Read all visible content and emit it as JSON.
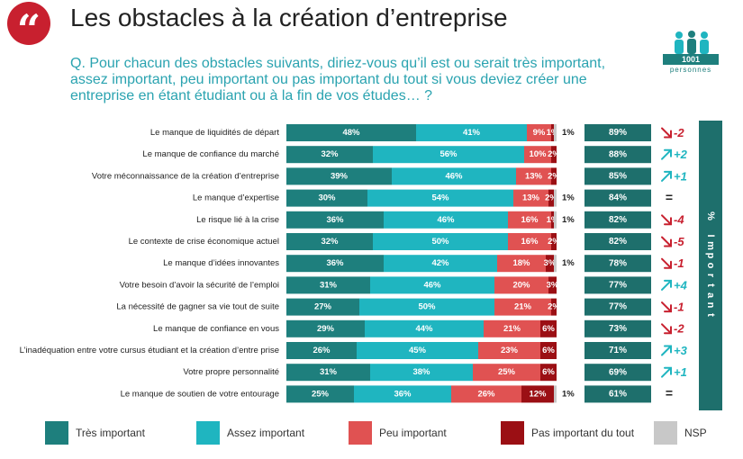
{
  "header": {
    "title": "Les obstacles à la création d’entreprise",
    "quote_glyph": "“",
    "question": "Q. Pour chacun des obstacles suivants, diriez-vous qu’il est ou serait très important, assez important, peu important ou pas important du tout si vous deviez créer une entreprise en étant étudiant ou à la fin de vos études… ?"
  },
  "sample": {
    "count": "1001",
    "unit": "personnes"
  },
  "colors": {
    "tres": "#1e7f7d",
    "assez": "#1fb5c0",
    "peu": "#e05252",
    "pas": "#9b0f14",
    "nsp": "#c8c8c8",
    "total_box": "#1e6f6c",
    "down_arrow": "#c8202f",
    "up_arrow": "#1fb5c0"
  },
  "chart_data": {
    "type": "bar",
    "orientation": "horizontal",
    "stacked": true,
    "categories": [
      "Le manque de liquidités de départ",
      "Le manque de confiance du marché",
      "Votre méconnaissance de la création d’entreprise",
      "Le manque d’expertise",
      "Le risque lié à la crise",
      "Le contexte de crise économique actuel",
      "Le manque d’idées innovantes",
      "Votre besoin d’avoir la sécurité de l’emploi",
      "La nécessité de gagner sa vie tout de suite",
      "Le manque de confiance en vous",
      "L’inadéquation entre votre cursus étudiant et la création d’entre prise",
      "Votre propre personnalité",
      "Le manque de soutien de votre entourage"
    ],
    "series": [
      {
        "name": "Très important",
        "values": [
          48,
          32,
          39,
          30,
          36,
          32,
          36,
          31,
          27,
          29,
          26,
          31,
          25
        ],
        "labels": [
          "48%",
          "32%",
          "39%",
          "30%",
          "36%",
          "32%",
          "36%",
          "31%",
          "27%",
          "29%",
          "26%",
          "31%",
          "25%"
        ]
      },
      {
        "name": "Assez important",
        "values": [
          41,
          56,
          46,
          54,
          46,
          50,
          42,
          46,
          50,
          44,
          45,
          38,
          36
        ],
        "labels": [
          "41%",
          "56%",
          "46%",
          "54%",
          "46%",
          "50%",
          "42%",
          "46%",
          "50%",
          "44%",
          "45%",
          "38%",
          "36%"
        ]
      },
      {
        "name": "Peu important",
        "values": [
          9,
          10,
          13,
          13,
          16,
          16,
          18,
          20,
          21,
          21,
          23,
          25,
          26
        ],
        "labels": [
          "9%",
          "10%",
          "13%",
          "13%",
          "16%",
          "16%",
          "18%",
          "20%",
          "21%",
          "21%",
          "23%",
          "25%",
          "26%"
        ]
      },
      {
        "name": "Pas important du tout",
        "values": [
          1,
          2,
          2,
          2,
          1,
          2,
          3,
          3,
          2,
          6,
          6,
          6,
          12
        ],
        "labels": [
          "1%",
          "2%",
          "2%",
          "2%",
          "1%",
          "2%",
          "3%",
          "3%",
          "2%",
          "6%",
          "6%",
          "6%",
          "12%"
        ]
      },
      {
        "name": "NSP",
        "values": [
          1,
          0,
          0,
          1,
          1,
          0,
          1,
          0,
          0,
          0,
          0,
          0,
          1
        ],
        "labels": [
          "1%",
          "",
          "",
          "1%",
          "1%",
          "",
          "1%",
          "",
          "",
          "",
          "",
          "",
          "1%"
        ]
      }
    ],
    "totals": {
      "title": "% Important",
      "values": [
        89,
        88,
        85,
        84,
        82,
        82,
        78,
        77,
        77,
        73,
        71,
        69,
        61
      ],
      "labels": [
        "89%",
        "88%",
        "85%",
        "84%",
        "82%",
        "82%",
        "78%",
        "77%",
        "77%",
        "73%",
        "71%",
        "69%",
        "61%"
      ]
    },
    "evolution": {
      "labels": [
        "-2",
        "+2",
        "+1",
        "=",
        "-4",
        "-5",
        "-1",
        "+4",
        "-1",
        "-2",
        "+3",
        "+1",
        "="
      ],
      "directions": [
        "down",
        "up",
        "up",
        "equal",
        "down",
        "down",
        "down",
        "up",
        "down",
        "down",
        "up",
        "up",
        "equal"
      ]
    },
    "legend": [
      "Très important",
      "Assez important",
      "Peu important",
      "Pas important du tout",
      "NSP"
    ],
    "xlim": [
      0,
      100
    ]
  }
}
